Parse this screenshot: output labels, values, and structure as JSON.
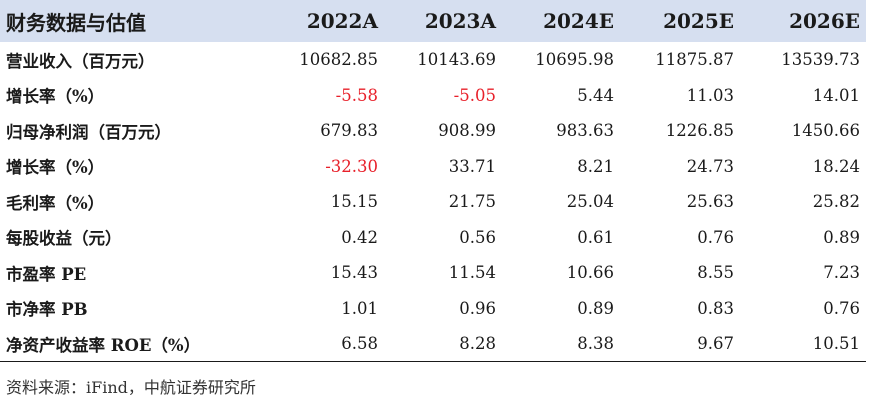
{
  "colors": {
    "header_bg": "#d6dff0",
    "negative": "#e8202a",
    "text": "#1a1a1a"
  },
  "table": {
    "header": {
      "label": "财务数据与估值",
      "years": [
        "2022A",
        "2023A",
        "2024E",
        "2025E",
        "2026E"
      ]
    },
    "rows": [
      {
        "label": "营业收入（百万元）",
        "values": [
          "10682.85",
          "10143.69",
          "10695.98",
          "11875.87",
          "13539.73"
        ],
        "negative": [
          false,
          false,
          false,
          false,
          false
        ]
      },
      {
        "label": "增长率（%）",
        "values": [
          "-5.58",
          "-5.05",
          "5.44",
          "11.03",
          "14.01"
        ],
        "negative": [
          true,
          true,
          false,
          false,
          false
        ]
      },
      {
        "label": "归母净利润（百万元）",
        "values": [
          "679.83",
          "908.99",
          "983.63",
          "1226.85",
          "1450.66"
        ],
        "negative": [
          false,
          false,
          false,
          false,
          false
        ]
      },
      {
        "label": "增长率（%）",
        "values": [
          "-32.30",
          "33.71",
          "8.21",
          "24.73",
          "18.24"
        ],
        "negative": [
          true,
          false,
          false,
          false,
          false
        ]
      },
      {
        "label": "毛利率（%）",
        "values": [
          "15.15",
          "21.75",
          "25.04",
          "25.63",
          "25.82"
        ],
        "negative": [
          false,
          false,
          false,
          false,
          false
        ]
      },
      {
        "label": "每股收益（元）",
        "values": [
          "0.42",
          "0.56",
          "0.61",
          "0.76",
          "0.89"
        ],
        "negative": [
          false,
          false,
          false,
          false,
          false
        ]
      },
      {
        "label": "市盈率 PE",
        "values": [
          "15.43",
          "11.54",
          "10.66",
          "8.55",
          "7.23"
        ],
        "negative": [
          false,
          false,
          false,
          false,
          false
        ]
      },
      {
        "label": "市净率 PB",
        "values": [
          "1.01",
          "0.96",
          "0.89",
          "0.83",
          "0.76"
        ],
        "negative": [
          false,
          false,
          false,
          false,
          false
        ]
      },
      {
        "label": "净资产收益率 ROE（%）",
        "values": [
          "6.58",
          "8.28",
          "8.38",
          "9.67",
          "10.51"
        ],
        "negative": [
          false,
          false,
          false,
          false,
          false
        ]
      }
    ]
  },
  "source": "资料来源：iFind，中航证券研究所"
}
